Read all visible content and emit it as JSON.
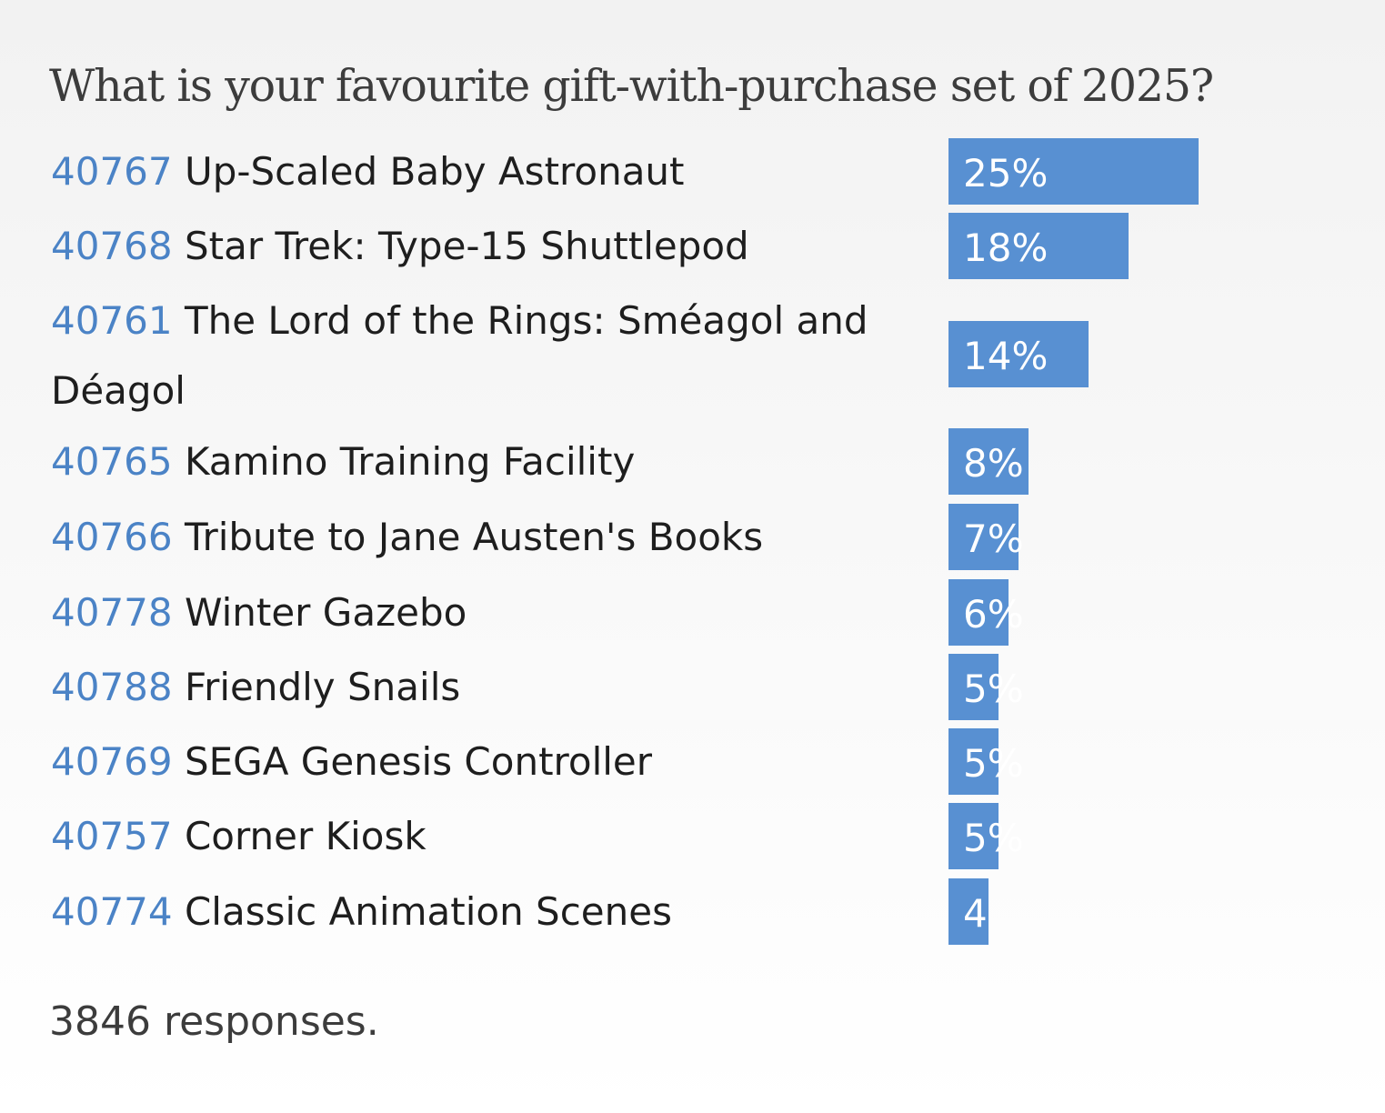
{
  "poll": {
    "title": "What is your favourite gift-with-purchase set of 2025?",
    "footer": "3846 responses."
  },
  "colors": {
    "bar": "#5890d2",
    "set_number": "#4b83c6",
    "text": "#1e1e1e",
    "title": "#3c3c3c"
  },
  "chart_data": {
    "type": "bar",
    "orientation": "horizontal",
    "title": "What is your favourite gift-with-purchase set of 2025?",
    "xlim": [
      0,
      25
    ],
    "value_unit": "%",
    "categories": [
      "40767 Up-Scaled Baby Astronaut",
      "40768 Star Trek: Type-15 Shuttlepod",
      "40761 The Lord of the Rings: Sméagol and Déagol",
      "40765 Kamino Training Facility",
      "40766 Tribute to Jane Austen's Books",
      "40778 Winter Gazebo",
      "40788 Friendly Snails",
      "40769 SEGA Genesis Controller",
      "40757 Corner Kiosk",
      "40774 Classic Animation Scenes"
    ],
    "values": [
      25,
      18,
      14,
      8,
      7,
      6,
      5,
      5,
      5,
      4
    ],
    "items": [
      {
        "set_number": "40767",
        "name": "Up-Scaled Baby Astronaut",
        "value": 25,
        "value_label": "25%"
      },
      {
        "set_number": "40768",
        "name": "Star Trek: Type-15 Shuttlepod",
        "value": 18,
        "value_label": "18%"
      },
      {
        "set_number": "40761",
        "name": "The Lord of the Rings: Sméagol and Déagol",
        "value": 14,
        "value_label": "14%"
      },
      {
        "set_number": "40765",
        "name": "Kamino Training Facility",
        "value": 8,
        "value_label": "8%"
      },
      {
        "set_number": "40766",
        "name": "Tribute to Jane Austen's Books",
        "value": 7,
        "value_label": "7%"
      },
      {
        "set_number": "40778",
        "name": "Winter Gazebo",
        "value": 6,
        "value_label": "6%"
      },
      {
        "set_number": "40788",
        "name": "Friendly Snails",
        "value": 5,
        "value_label": "5%"
      },
      {
        "set_number": "40769",
        "name": "SEGA Genesis Controller",
        "value": 5,
        "value_label": "5%"
      },
      {
        "set_number": "40757",
        "name": "Corner Kiosk",
        "value": 5,
        "value_label": "5%"
      },
      {
        "set_number": "40774",
        "name": "Classic Animation Scenes",
        "value": 4,
        "value_label": "4"
      }
    ]
  }
}
